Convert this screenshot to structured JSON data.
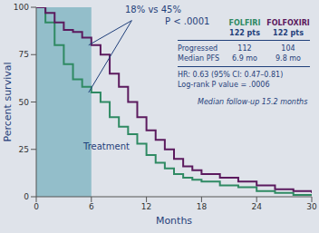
{
  "chart_data": {
    "type": "step",
    "x_label": "Months",
    "y_label": "Percent survival",
    "x": [
      0,
      1,
      2,
      3,
      4,
      5,
      6,
      7,
      8,
      9,
      10,
      11,
      12,
      13,
      14,
      15,
      16,
      17,
      18,
      20,
      22,
      24,
      26,
      28,
      30
    ],
    "series": [
      {
        "name": "FOLFIRI",
        "color": "#2f8a63",
        "values": [
          100,
          92,
          80,
          70,
          62,
          58,
          55,
          50,
          42,
          37,
          33,
          28,
          22,
          18,
          15,
          12,
          10,
          9,
          8,
          6,
          5,
          3,
          2,
          1,
          1
        ]
      },
      {
        "name": "FOLFOXIRI",
        "color": "#5b1a5e",
        "values": [
          100,
          97,
          92,
          88,
          87,
          84,
          80,
          75,
          65,
          58,
          50,
          42,
          35,
          30,
          25,
          20,
          16,
          14,
          12,
          10,
          8,
          6,
          4,
          3,
          2
        ]
      }
    ],
    "xlim": [
      0,
      30
    ],
    "xticks": [
      0,
      6,
      12,
      18,
      24,
      30
    ],
    "ylim": [
      0,
      100
    ],
    "yticks": [
      0,
      25,
      50,
      75,
      100
    ],
    "grid": false,
    "treatment": {
      "x": [
        0,
        6
      ],
      "label": "Treatment"
    },
    "annotations": [
      "18% vs 45%",
      "P < .0001"
    ],
    "table": {
      "counts": [
        "122 pts",
        "122 pts"
      ],
      "rows": [
        {
          "label": "Progressed",
          "values": [
            "112",
            "104"
          ]
        },
        {
          "label": "Median PFS",
          "values": [
            "6.9 mo",
            "9.8 mo"
          ]
        }
      ],
      "notes": [
        "HR: 0.63 (95% CI: 0.47–0.81)",
        "Log-rank P value = .0006",
        "Median follow-up 15.2 months"
      ]
    }
  }
}
